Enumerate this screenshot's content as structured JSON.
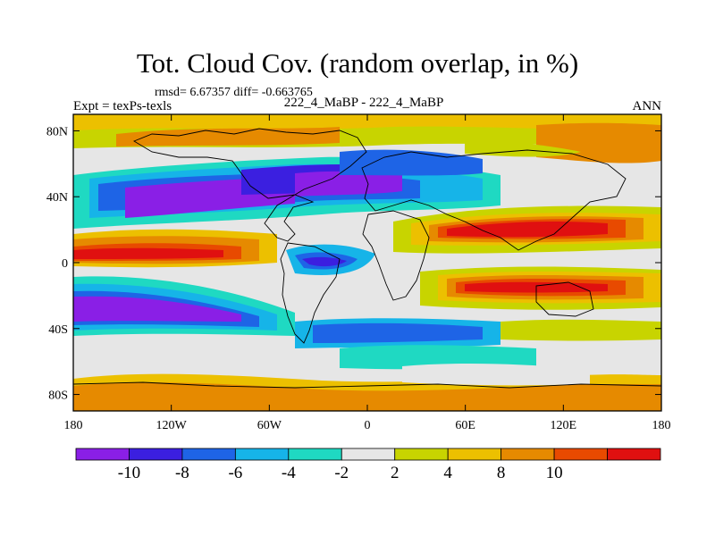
{
  "plot": {
    "title": "Tot. Cloud Cov. (random overlap, in %)",
    "stats_line": "rmsd= 6.67357 diff= -0.663765",
    "left_label": "Expt = texPs-texls",
    "center_label": "222_4_MaBP - 222_4_MaBP",
    "right_label": "ANN"
  },
  "map": {
    "lat_range": [
      -90,
      90
    ],
    "lon_range": [
      -180,
      180
    ],
    "lat_ticks": [
      {
        "value": 80,
        "label": "80N"
      },
      {
        "value": 40,
        "label": "40N"
      },
      {
        "value": 0,
        "label": "0"
      },
      {
        "value": -40,
        "label": "40S"
      },
      {
        "value": -80,
        "label": "80S"
      }
    ],
    "lon_ticks": [
      {
        "value": -180,
        "label": "180"
      },
      {
        "value": -120,
        "label": "120W"
      },
      {
        "value": -60,
        "label": "60W"
      },
      {
        "value": 0,
        "label": "0"
      },
      {
        "value": 60,
        "label": "60E"
      },
      {
        "value": 120,
        "label": "120E"
      },
      {
        "value": 180,
        "label": "180"
      }
    ]
  },
  "colorbar": {
    "colors": [
      "#8a1fe6",
      "#3b1fe0",
      "#1e64e6",
      "#16b4e8",
      "#1fd9c2",
      "#e6e6e6",
      "#c8d400",
      "#ecc000",
      "#e68a00",
      "#e84a00",
      "#e01010"
    ],
    "labels": [
      "-10",
      "-8",
      "-6",
      "-4",
      "-2",
      "2",
      "4",
      "8",
      "10"
    ]
  },
  "field_colors": {
    "purple": "#8a1fe6",
    "blue": "#3b1fe0",
    "mblue": "#1e64e6",
    "cyan": "#16b4e8",
    "teal": "#1fd9c2",
    "lgray": "#e6e6e6",
    "yg": "#c8d400",
    "yel": "#ecc000",
    "org": "#e68a00",
    "dorg": "#e84a00",
    "red": "#e01010"
  }
}
